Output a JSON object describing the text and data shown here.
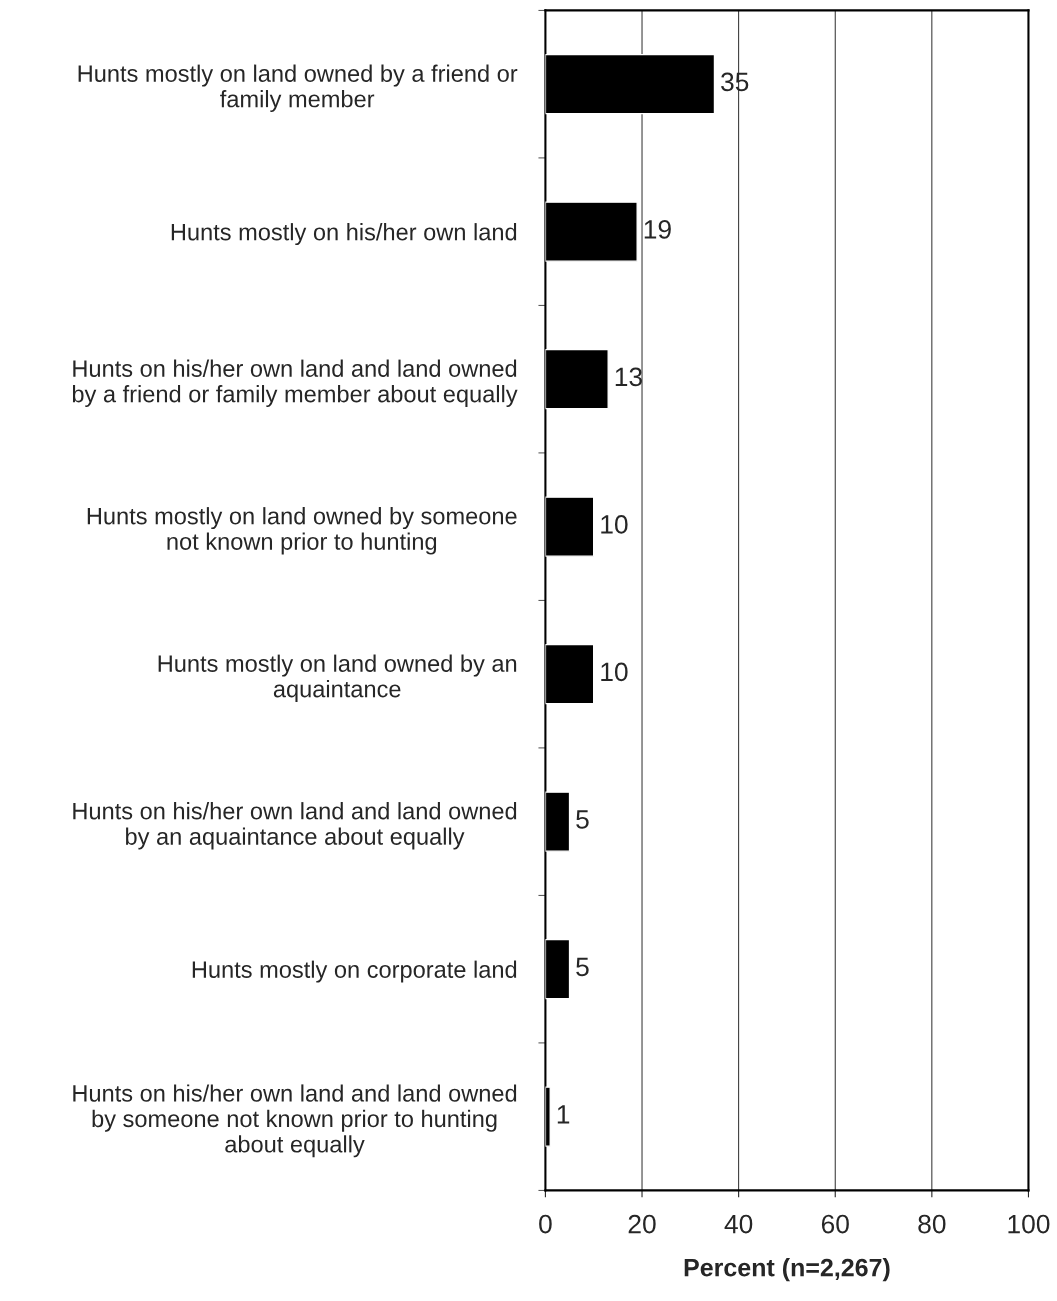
{
  "chart_data": {
    "type": "bar",
    "orientation": "horizontal",
    "categories": [
      "Hunts mostly on land owned by a friend or\nfamily member",
      "Hunts mostly on his/her own land",
      "Hunts on his/her own land and land owned\nby a friend or family member about equally",
      "Hunts mostly on land owned by someone\nnot known prior to hunting",
      "Hunts mostly on land owned by an\naquaintance",
      "Hunts on his/her own land and land owned\nby an aquaintance about equally",
      "Hunts mostly on corporate land",
      "Hunts on his/her own land and land owned\nby someone not known prior to hunting\nabout equally"
    ],
    "values": [
      35,
      19,
      13,
      10,
      10,
      5,
      5,
      1
    ],
    "color": "#000000",
    "xlabel": "Percent (n=2,267)",
    "xlim": [
      0,
      100
    ],
    "xticks": [
      0,
      20,
      40,
      60,
      80,
      100
    ],
    "grid": "x",
    "data_labels": true
  }
}
